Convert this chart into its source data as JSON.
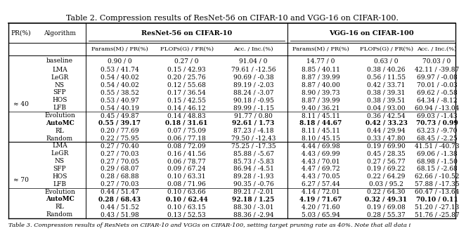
{
  "title": "Table 2. Compression results of ResNet-56 on CIFAR-10 and VGG-16 on CIFAR-100.",
  "baseline": [
    "",
    "baseline",
    "0.90 / 0",
    "0.27 / 0",
    "91.04 / 0",
    "14.77 / 0",
    "0.63 / 0",
    "70.03 / 0"
  ],
  "rows_40": [
    [
      "≈ 40",
      "LMA",
      "0.53 / 41.74",
      "0.15 / 42.93",
      "79.61 / -12.56",
      "8.85 / 40.11",
      "0.38 / 40.26",
      "42.11 / -39.87"
    ],
    [
      "",
      "LeGR",
      "0.54 / 40.02",
      "0.20 / 25.76",
      "90.69 / -0.38",
      "8.87 / 39.99",
      "0.56 / 11.55",
      "69.97 / -0.08"
    ],
    [
      "",
      "NS",
      "0.54 / 40.02",
      "0.12 / 55.68",
      "89.19 / -2.03",
      "8.87 / 40.00",
      "0.42 / 33.71",
      "70.01 / -0.03"
    ],
    [
      "",
      "SFP",
      "0.55 / 38.52",
      "0.17 / 36.54",
      "88.24 / -3.07",
      "8.90 / 39.73",
      "0.38 / 39.31",
      "69.62 / -0.58"
    ],
    [
      "",
      "HOS",
      "0.53 / 40.97",
      "0.15 / 42.55",
      "90.18 / -0.95",
      "8.87 / 39.99",
      "0.38 / 39.51",
      "64.34 / -8.12"
    ],
    [
      "",
      "LFB",
      "0.54 / 40.19",
      "0.14 / 46.12",
      "89.99 / -1.15",
      "9.40 / 36.21",
      "0.04 / 93.00",
      "60.94 / -13.04"
    ],
    [
      "",
      "Evolution",
      "0.45 / 49.87",
      "0.14 / 48.83",
      "91.77 / 0.80",
      "8.11 / 45.11",
      "0.36 / 42.54",
      "69.03 / -1.43"
    ],
    [
      "",
      "AutoMC",
      "0.55 / 39.17",
      "0.18 / 31.61",
      "92.61 / 1.73",
      "8.18 / 44.67",
      "0.42 / 33.23",
      "70.73 / 0.99"
    ],
    [
      "",
      "RL",
      "0.20 / 77.69",
      "0.07 / 75.09",
      "87.23 / -4.18",
      "8.11 / 45.11",
      "0.44 / 29.94",
      "63.23 / -9.70"
    ],
    [
      "",
      "Random",
      "0.22 / 75.95",
      "0.06 / 77.18",
      "79.50 / -12.43",
      "8.10 / 45.15",
      "0.33 / 47.80",
      "68.45 / -2.25"
    ]
  ],
  "rows_70": [
    [
      "≈ 70",
      "LMA",
      "0.27 / 70.40",
      "0.08 / 72.09",
      "75.25 / -17.35",
      "4.44 / 69.98",
      "0.19 / 69.90",
      "41.51 / -40.73"
    ],
    [
      "",
      "LeGR",
      "0.27 / 70.03",
      "0.16 / 41.56",
      "85.88 / -5.67",
      "4.43 / 69.99",
      "0.45 / 28.35",
      "69.06 / -1.38"
    ],
    [
      "",
      "NS",
      "0.27 / 70.05",
      "0.06 / 78.77",
      "85.73 / -5.83",
      "4.43 / 70.01",
      "0.27 / 56.77",
      "68.98 / -1.50"
    ],
    [
      "",
      "SFP",
      "0.29 / 68.07",
      "0.09 / 67.24",
      "86.94 / -4.51",
      "4.47 / 69.72",
      "0.19 / 69.22",
      "68.15 / -2.68"
    ],
    [
      "",
      "HOS",
      "0.28 / 68.88",
      "0.10 / 63.31",
      "89.28 / -1.93",
      "4.43 / 70.05",
      "0.22 / 64.29",
      "62.66 / -10.52"
    ],
    [
      "",
      "LFB",
      "0.27 / 70.03",
      "0.08 / 71.96",
      "90.35 / -0.76",
      "6.27 / 57.44",
      "0.03 / 95.2",
      "57.88 / -17.35"
    ],
    [
      "",
      "Evolution",
      "0.44 / 51.47",
      "0.10 / 63.66",
      "89.21 / -2.01",
      "4.14 / 72.01",
      "0.22 / 64.30",
      "60.47 / -13.64"
    ],
    [
      "",
      "AutoMC",
      "0.28 / 68.43",
      "0.10 / 62.44",
      "92.18 / 1.25",
      "4.19 / 71.67",
      "0.32 / 49.31",
      "70.10 / 0.11"
    ],
    [
      "",
      "RL",
      "0.44 / 51.52",
      "0.10 / 63.15",
      "88.30 / -3.01",
      "4.20 / 71.60",
      "0.19 / 69.08",
      "51.20 / -27.13"
    ],
    [
      "",
      "Random",
      "0.43 / 51.98",
      "0.13 / 52.53",
      "88.36 / -2.94",
      "5.03 / 65.94",
      "0.28 / 55.37",
      "51.76 / -25.87"
    ]
  ],
  "bold_rows": [
    "AutoMC"
  ],
  "footer": "Table 3. Compression results of ResNets on CIFAR-10 and VGGs on CIFAR-100, setting target pruning rate as 40%. Note that all data i",
  "font_size": 6.5,
  "title_font_size": 8.0,
  "footer_font_size": 6.0
}
